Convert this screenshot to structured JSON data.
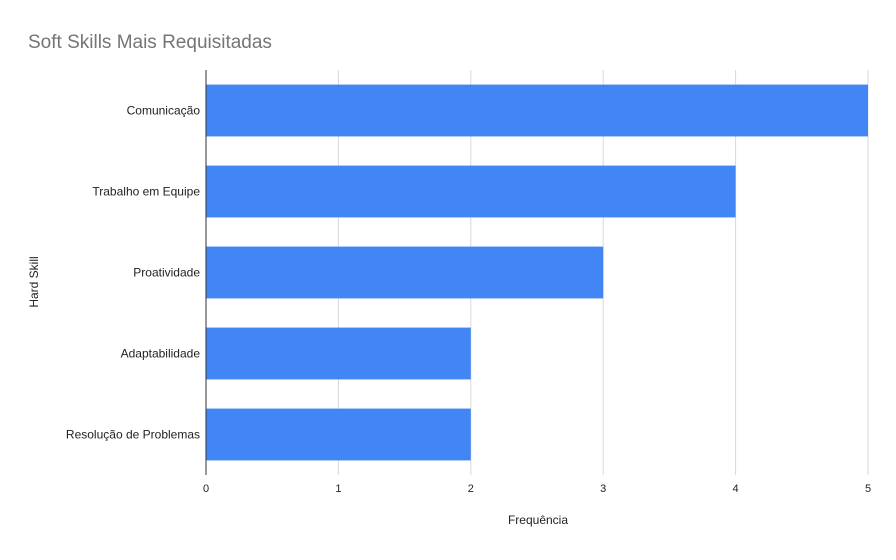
{
  "chart_data": {
    "type": "bar",
    "orientation": "horizontal",
    "title": "Soft Skills Mais Requisitadas",
    "xlabel": "Frequência",
    "ylabel": "Hard Skill",
    "categories": [
      "Comunicação",
      "Trabalho em Equipe",
      "Proatividade",
      "Adaptabilidade",
      "Resolução de Problemas"
    ],
    "values": [
      5,
      4,
      3,
      2,
      2
    ],
    "xlim": [
      0,
      5
    ],
    "xticks": [
      "0",
      "1",
      "2",
      "3",
      "4",
      "5"
    ],
    "grid": true,
    "legend": "none",
    "colors": {
      "bar": "#4285f4",
      "grid": "#d9d9d9",
      "axis": "#333333",
      "title": "#757575",
      "text": "#222222"
    }
  }
}
